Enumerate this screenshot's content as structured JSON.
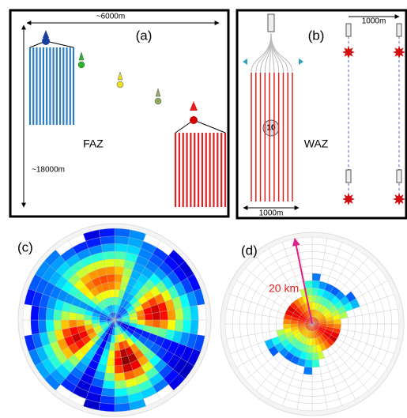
{
  "panel_a": {
    "label": "(a)",
    "width_label": "~6000m",
    "length_label": "~18000m",
    "name": "FAZ"
  },
  "panel_b": {
    "label": "(b)",
    "spacing_label": "1000m",
    "streamer_label": "1000m",
    "badge": "10",
    "name": "WAZ"
  },
  "panel_c": {
    "label": "(c)"
  },
  "panel_d": {
    "label": "(d)",
    "radius_label": "20 km"
  }
}
